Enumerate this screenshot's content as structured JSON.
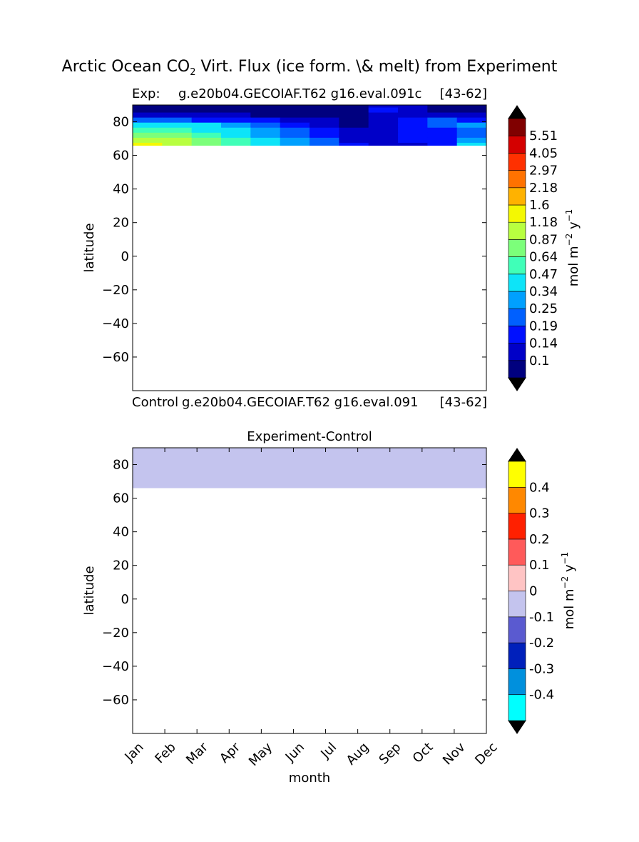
{
  "figure": {
    "title_main": "Arctic Ocean CO",
    "title_sub": "2",
    "title_rest": " Virt. Flux (ice form. \\& melt) from Experiment"
  },
  "chart_data": [
    {
      "type": "heatmap",
      "title_left": "Exp:",
      "title_center": "g.e20b04.GECOIAF.T62 g16.eval.091c",
      "title_right": "[43-62]",
      "bottom_left": "Control",
      "bottom_center": "g.e20b04.GECOIAF.T62 g16.eval.091",
      "bottom_right": "[43-62]",
      "ylabel": "latitude",
      "ylim": [
        -80,
        90
      ],
      "yticks": [
        80,
        60,
        40,
        20,
        0,
        -20,
        -40,
        -60
      ],
      "ytick_labels": [
        "80",
        "60",
        "40",
        "20",
        "0",
        "−20",
        "−40",
        "−60"
      ],
      "months": [
        "Jan",
        "Feb",
        "Mar",
        "Apr",
        "May",
        "Jun",
        "Jul",
        "Aug",
        "Sep",
        "Oct",
        "Nov",
        "Dec"
      ],
      "data_lat_range": [
        66,
        90
      ],
      "colorbar": {
        "label": "mol m",
        "label_exp1": "−2",
        "label_mid": " y",
        "label_exp2": "−1",
        "levels": [
          "0.1",
          "0.14",
          "0.19",
          "0.25",
          "0.34",
          "0.47",
          "0.64",
          "0.87",
          "1.18",
          "1.6",
          "2.18",
          "2.97",
          "4.05",
          "5.51"
        ],
        "colors": [
          "#00007f",
          "#0000c8",
          "#0010ff",
          "#0060ff",
          "#00a0ff",
          "#0de4f8",
          "#40ffb8",
          "#7cff7a",
          "#b8ff40",
          "#f4f802",
          "#ffb200",
          "#ff7200",
          "#ff3000",
          "#d40000",
          "#800000"
        ],
        "extend_low": "#000000",
        "extend_high": "#000000"
      },
      "field_levels": [
        {
          "lat": 90,
          "values": [
            0,
            0,
            0,
            0,
            0,
            0,
            0,
            0,
            1,
            1,
            0,
            0
          ]
        },
        {
          "lat": 87,
          "values": [
            0,
            0,
            0,
            0,
            0,
            0,
            0,
            0,
            2,
            1,
            0,
            0
          ]
        },
        {
          "lat": 84,
          "values": [
            1,
            1,
            1,
            1,
            0,
            0,
            0,
            0,
            1,
            1,
            1,
            1
          ]
        },
        {
          "lat": 81,
          "values": [
            3,
            3,
            2,
            2,
            2,
            1,
            1,
            0,
            1,
            2,
            3,
            2
          ]
        },
        {
          "lat": 78,
          "values": [
            5,
            5,
            5,
            4,
            3,
            2,
            1,
            0,
            1,
            2,
            3,
            4
          ]
        },
        {
          "lat": 75,
          "values": [
            6,
            6,
            5,
            5,
            4,
            3,
            2,
            1,
            1,
            2,
            2,
            3
          ]
        },
        {
          "lat": 72,
          "values": [
            7,
            7,
            6,
            5,
            4,
            3,
            2,
            1,
            1,
            2,
            2,
            3
          ]
        },
        {
          "lat": 69,
          "values": [
            8,
            8,
            7,
            6,
            5,
            4,
            3,
            1,
            1,
            2,
            2,
            4
          ]
        },
        {
          "lat": 66,
          "values": [
            9,
            8,
            7,
            6,
            5,
            4,
            3,
            2,
            1,
            1,
            2,
            5
          ]
        }
      ]
    },
    {
      "type": "heatmap",
      "title": "Experiment-Control",
      "ylabel": "latitude",
      "xlabel": "month",
      "ylim": [
        -80,
        90
      ],
      "yticks": [
        80,
        60,
        40,
        20,
        0,
        -20,
        -40,
        -60
      ],
      "ytick_labels": [
        "80",
        "60",
        "40",
        "20",
        "0",
        "−20",
        "−40",
        "−60"
      ],
      "months": [
        "Jan",
        "Feb",
        "Mar",
        "Apr",
        "May",
        "Jun",
        "Jul",
        "Aug",
        "Sep",
        "Oct",
        "Nov",
        "Dec"
      ],
      "data_lat_range": [
        66,
        90
      ],
      "field_value_bin": "-0.1 to 0",
      "field_color": "#c4c4ee",
      "colorbar": {
        "label": "mol m",
        "label_exp1": "−2",
        "label_mid": " y",
        "label_exp2": "−1",
        "levels": [
          "-0.4",
          "-0.3",
          "-0.2",
          "-0.1",
          "0",
          "0.1",
          "0.2",
          "0.3",
          "0.4"
        ],
        "colors": [
          "#00ffff",
          "#0090dd",
          "#0020bb",
          "#5a5ad0",
          "#c4c4ee",
          "#ffc4c4",
          "#ff5a5a",
          "#ff2000",
          "#ff8800",
          "#ffff00"
        ],
        "extend_low": "#000000",
        "extend_high": "#000000"
      }
    }
  ]
}
